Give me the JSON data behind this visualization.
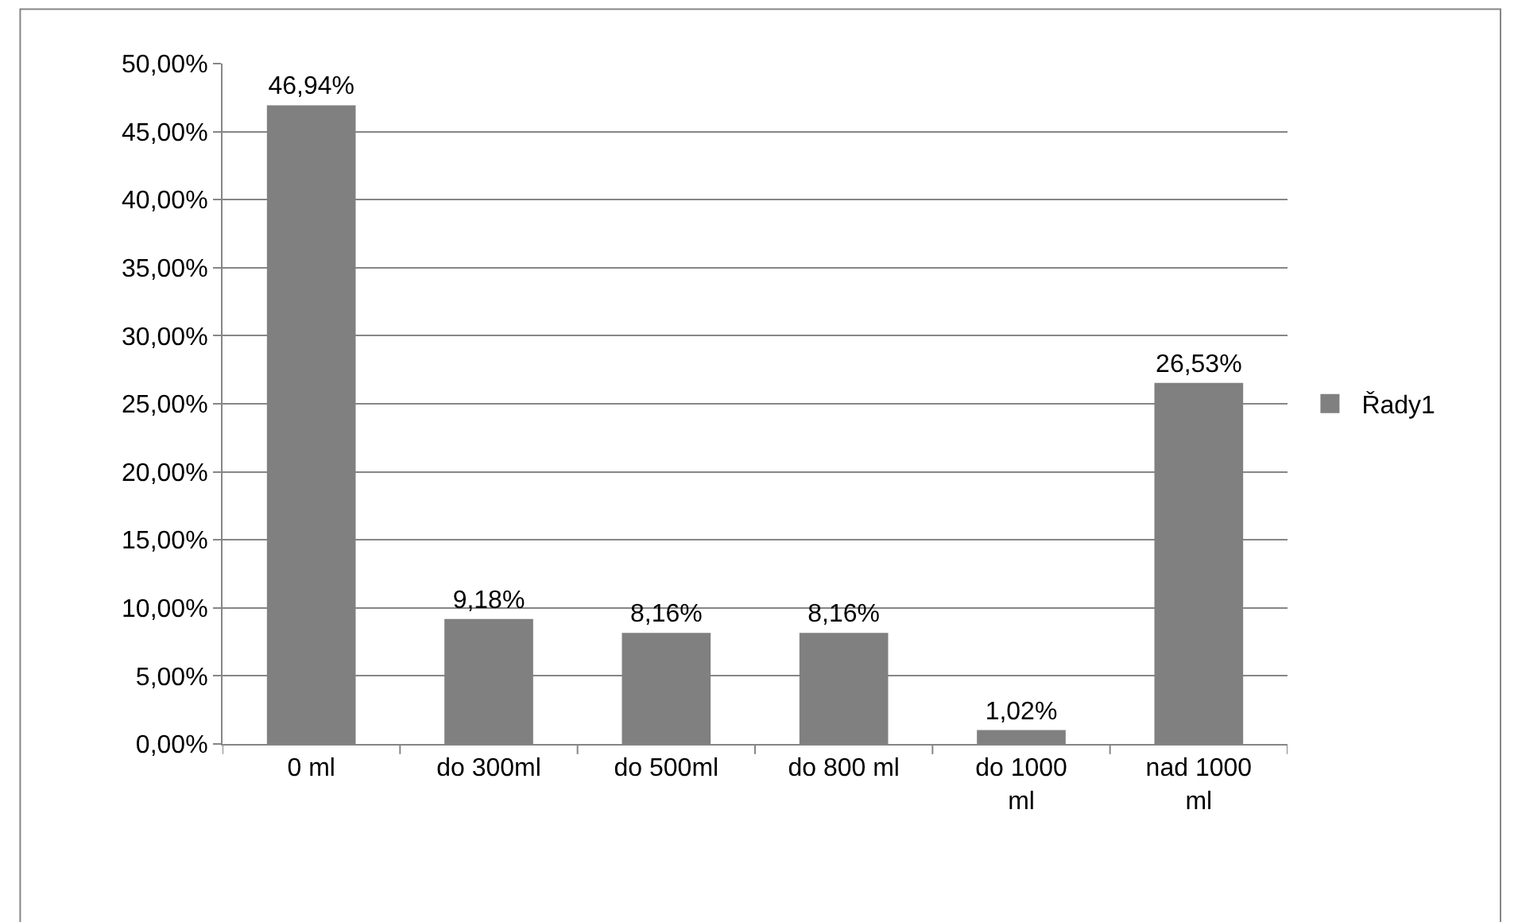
{
  "chart_data": {
    "type": "bar",
    "categories": [
      "0 ml",
      "do 300ml",
      "do 500ml",
      "do 800 ml",
      "do 1000 ml",
      "nad 1000 ml"
    ],
    "series": [
      {
        "name": "Řady1",
        "color": "#808080",
        "values": [
          46.94,
          9.18,
          8.16,
          8.16,
          1.02,
          26.53
        ],
        "value_labels": [
          "46,94%",
          "9,18%",
          "8,16%",
          "8,16%",
          "1,02%",
          "26,53%"
        ]
      }
    ],
    "ylim": [
      0,
      50
    ],
    "yticks": [
      {
        "value": 0,
        "label": "0,00%"
      },
      {
        "value": 5,
        "label": "5,00%"
      },
      {
        "value": 10,
        "label": "10,00%"
      },
      {
        "value": 15,
        "label": "15,00%"
      },
      {
        "value": 20,
        "label": "20,00%"
      },
      {
        "value": 25,
        "label": "25,00%"
      },
      {
        "value": 30,
        "label": "30,00%"
      },
      {
        "value": 35,
        "label": "35,00%"
      },
      {
        "value": 40,
        "label": "40,00%"
      },
      {
        "value": 45,
        "label": "45,00%"
      },
      {
        "value": 50,
        "label": "50,00%"
      }
    ],
    "grid": "y",
    "legend": "right"
  }
}
